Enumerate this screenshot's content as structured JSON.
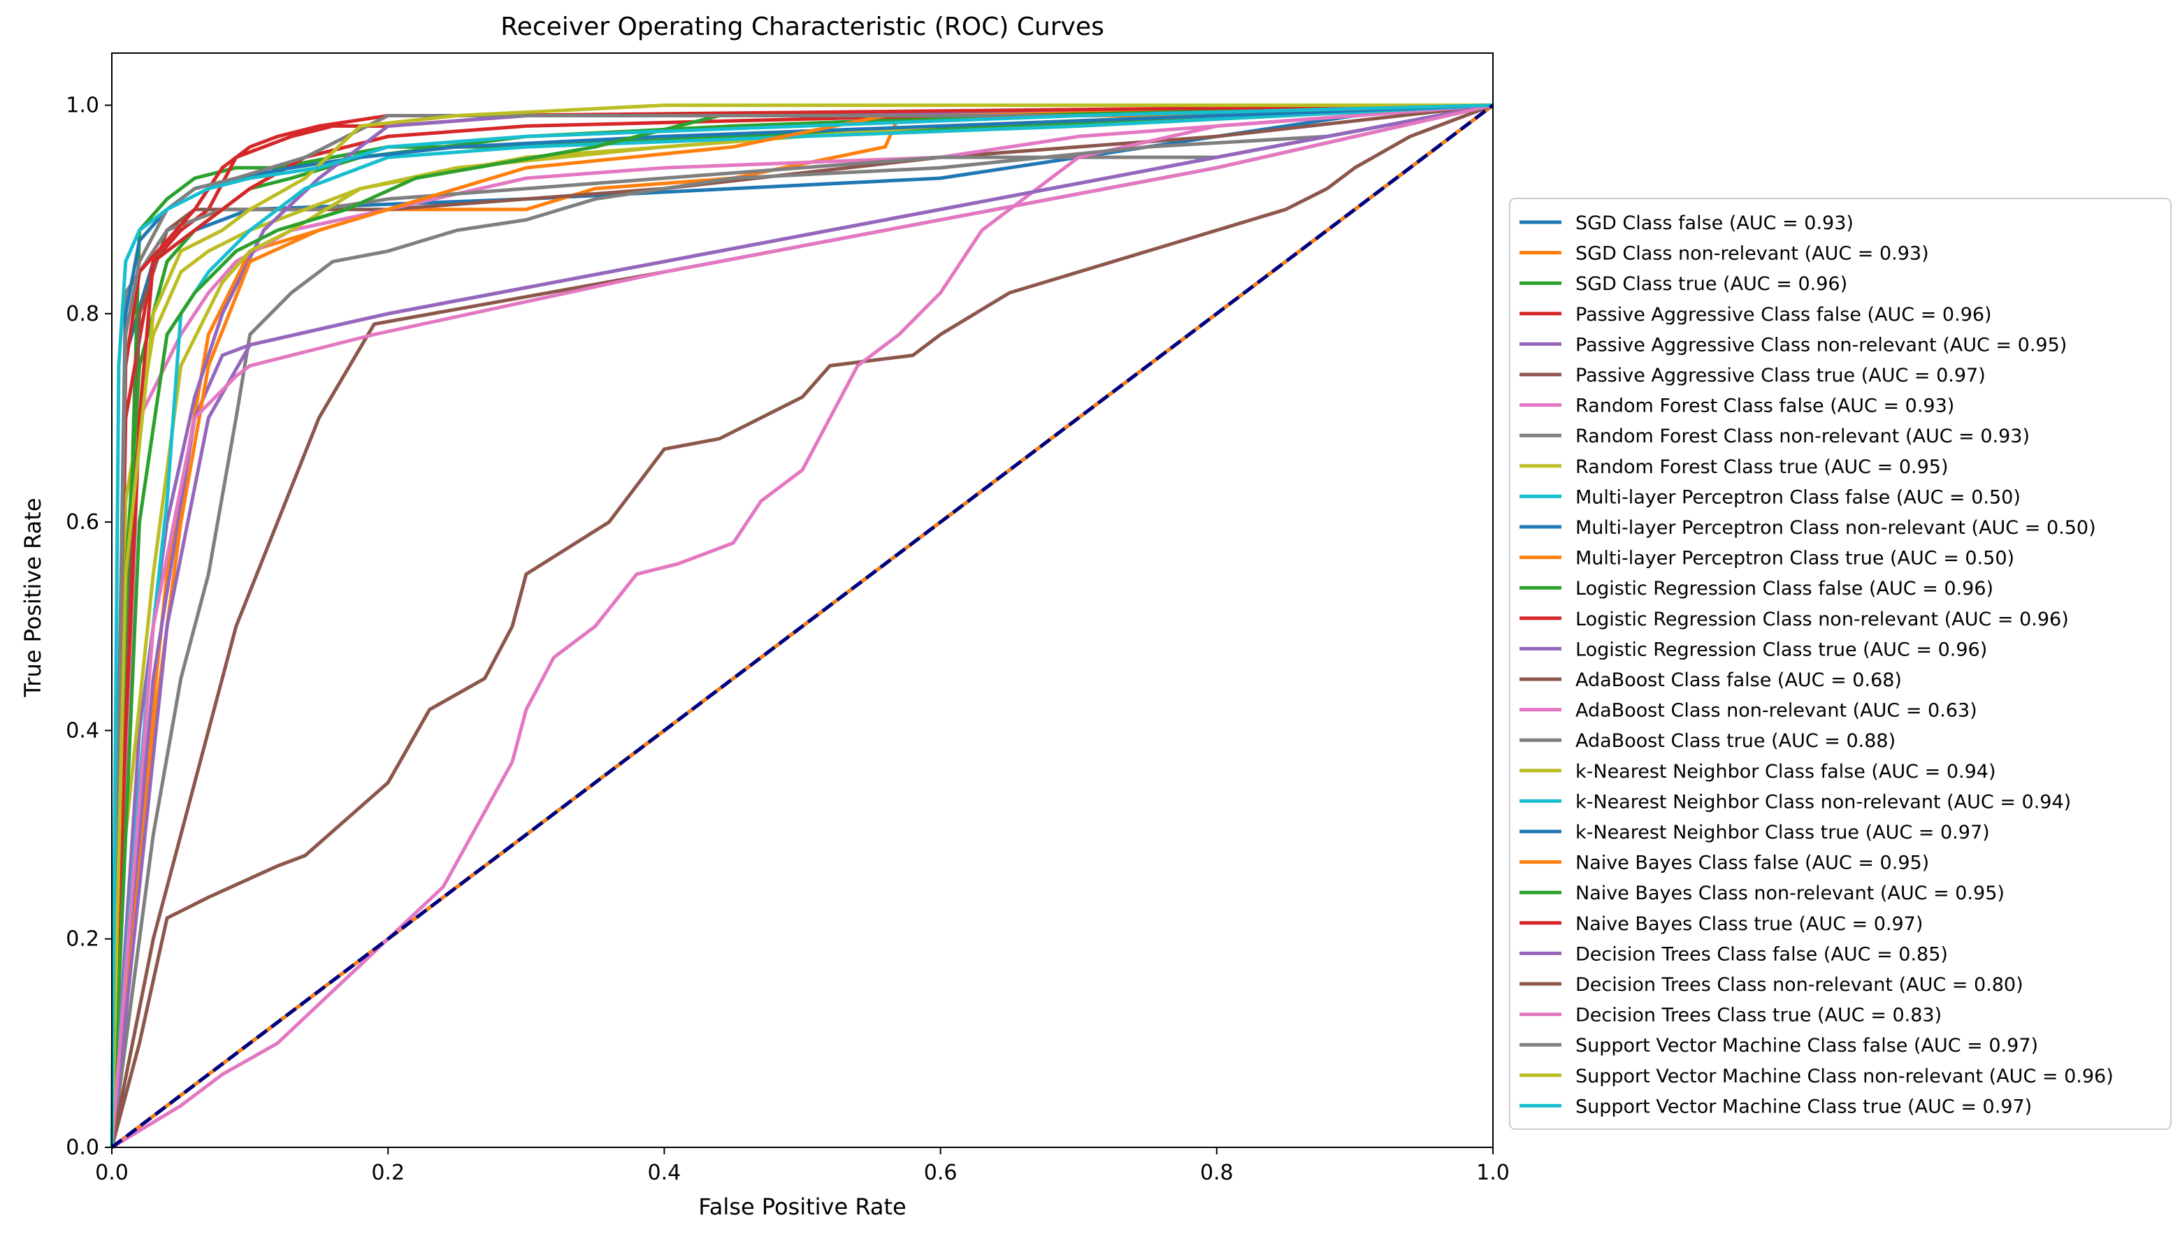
{
  "chart_data": {
    "type": "line",
    "title": "Receiver Operating Characteristic (ROC) Curves",
    "xlabel": "False Positive Rate",
    "ylabel": "True Positive Rate",
    "xlim": [
      0.0,
      1.0
    ],
    "ylim": [
      0.0,
      1.05
    ],
    "xticks": [
      "0.0",
      "0.2",
      "0.4",
      "0.6",
      "0.8",
      "1.0"
    ],
    "xtick_values": [
      0.0,
      0.2,
      0.4,
      0.6,
      0.8,
      1.0
    ],
    "yticks": [
      "0.0",
      "0.2",
      "0.4",
      "0.6",
      "0.8",
      "1.0"
    ],
    "ytick_values": [
      0.0,
      0.2,
      0.4,
      0.6,
      0.8,
      1.0
    ],
    "grid": false,
    "legend_position": "center-right-outside",
    "series": [
      {
        "name": "SGD Class false (AUC = 0.93)",
        "color": "#1f77b4",
        "x": [
          0,
          0.01,
          0.03,
          0.06,
          0.1,
          0.2,
          0.3,
          0.45,
          0.6,
          0.7,
          0.8,
          0.9,
          1.0
        ],
        "y": [
          0,
          0.76,
          0.85,
          0.88,
          0.9,
          0.905,
          0.91,
          0.92,
          0.93,
          0.95,
          0.97,
          0.99,
          1.0
        ]
      },
      {
        "name": "SGD Class non-relevant (AUC = 0.93)",
        "color": "#ff7f0e",
        "x": [
          0,
          0.02,
          0.04,
          0.07,
          0.1,
          0.15,
          0.2,
          0.3,
          0.35,
          0.45,
          0.56,
          0.57,
          0.8,
          1.0
        ],
        "y": [
          0,
          0.3,
          0.55,
          0.78,
          0.86,
          0.88,
          0.9,
          0.9,
          0.92,
          0.93,
          0.96,
          0.99,
          0.99,
          1.0
        ]
      },
      {
        "name": "SGD Class true (AUC = 0.96)",
        "color": "#2ca02c",
        "x": [
          0,
          0.02,
          0.04,
          0.06,
          0.09,
          0.12,
          0.16,
          0.2,
          0.3,
          0.45,
          0.65,
          1.0
        ],
        "y": [
          0,
          0.88,
          0.91,
          0.93,
          0.94,
          0.94,
          0.95,
          0.96,
          0.96,
          0.97,
          0.98,
          1.0
        ]
      },
      {
        "name": "Passive Aggressive Class false (AUC = 0.96)",
        "color": "#d62728",
        "x": [
          0,
          0.01,
          0.03,
          0.05,
          0.07,
          0.09,
          0.11,
          0.13,
          0.16,
          0.2,
          0.3,
          0.5,
          1.0
        ],
        "y": [
          0,
          0.7,
          0.85,
          0.88,
          0.9,
          0.95,
          0.96,
          0.97,
          0.98,
          0.98,
          0.99,
          0.99,
          1.0
        ]
      },
      {
        "name": "Passive Aggressive Class non-relevant (AUC = 0.95)",
        "color": "#9467bd",
        "x": [
          0,
          0.03,
          0.06,
          0.08,
          0.1,
          0.2,
          0.4,
          0.6,
          0.8,
          1.0
        ],
        "y": [
          0,
          0.45,
          0.7,
          0.76,
          0.77,
          0.8,
          0.85,
          0.9,
          0.95,
          1.0
        ]
      },
      {
        "name": "Passive Aggressive Class true (AUC = 0.97)",
        "color": "#8c564b",
        "x": [
          0,
          0.02,
          0.04,
          0.06,
          0.1,
          0.2,
          0.4,
          0.6,
          0.8,
          1.0
        ],
        "y": [
          0,
          0.8,
          0.88,
          0.9,
          0.9,
          0.9,
          0.92,
          0.95,
          0.97,
          1.0
        ]
      },
      {
        "name": "Random Forest Class false (AUC = 0.93)",
        "color": "#e377c2",
        "x": [
          0,
          0.02,
          0.05,
          0.07,
          0.09,
          0.13,
          0.2,
          0.3,
          0.4,
          0.6,
          0.7,
          1.0
        ],
        "y": [
          0,
          0.7,
          0.78,
          0.82,
          0.85,
          0.88,
          0.9,
          0.93,
          0.94,
          0.95,
          0.97,
          1.0
        ]
      },
      {
        "name": "Random Forest Class non-relevant (AUC = 0.93)",
        "color": "#7f7f7f",
        "x": [
          0,
          0.01,
          0.04,
          0.06,
          0.08,
          0.1,
          0.15,
          0.2,
          0.3,
          0.6,
          0.8,
          1.0
        ],
        "y": [
          0,
          0.82,
          0.88,
          0.89,
          0.9,
          0.9,
          0.9,
          0.91,
          0.92,
          0.95,
          0.95,
          1.0
        ]
      },
      {
        "name": "Random Forest Class true (AUC = 0.95)",
        "color": "#bcbd22",
        "x": [
          0,
          0.01,
          0.03,
          0.05,
          0.07,
          0.1,
          0.14,
          0.18,
          0.25,
          0.4,
          0.6,
          1.0
        ],
        "y": [
          0,
          0.62,
          0.78,
          0.84,
          0.86,
          0.88,
          0.9,
          0.92,
          0.94,
          0.96,
          0.98,
          1.0
        ]
      },
      {
        "name": "Multi-layer Perceptron Class false (AUC = 0.50)",
        "color": "#17becf",
        "x": [
          0,
          1.0
        ],
        "y": [
          0,
          1.0
        ]
      },
      {
        "name": "Multi-layer Perceptron Class non-relevant (AUC = 0.50)",
        "color": "#1f77b4",
        "x": [
          0,
          1.0
        ],
        "y": [
          0,
          1.0
        ]
      },
      {
        "name": "Multi-layer Perceptron Class true (AUC = 0.50)",
        "color": "#ff7f0e",
        "x": [
          0,
          1.0
        ],
        "y": [
          0,
          1.0
        ]
      },
      {
        "name": "Logistic Regression Class false (AUC = 0.96)",
        "color": "#2ca02c",
        "x": [
          0,
          0.01,
          0.02,
          0.04,
          0.06,
          0.08,
          0.1,
          0.13,
          0.18,
          0.3,
          0.45,
          0.65,
          1.0
        ],
        "y": [
          0,
          0.55,
          0.75,
          0.85,
          0.88,
          0.9,
          0.92,
          0.93,
          0.95,
          0.97,
          0.98,
          0.99,
          1.0
        ]
      },
      {
        "name": "Logistic Regression Class non-relevant (AUC = 0.96)",
        "color": "#d62728",
        "x": [
          0,
          0.01,
          0.02,
          0.03,
          0.05,
          0.08,
          0.1,
          0.14,
          0.2,
          0.3,
          0.6,
          1.0
        ],
        "y": [
          0,
          0.4,
          0.7,
          0.85,
          0.87,
          0.9,
          0.92,
          0.95,
          0.97,
          0.98,
          0.99,
          1.0
        ]
      },
      {
        "name": "Logistic Regression Class true (AUC = 0.96)",
        "color": "#9467bd",
        "x": [
          0,
          0.02,
          0.04,
          0.06,
          0.08,
          0.11,
          0.15,
          0.2,
          0.3,
          0.5,
          1.0
        ],
        "y": [
          0,
          0.4,
          0.6,
          0.72,
          0.8,
          0.88,
          0.93,
          0.98,
          0.99,
          0.99,
          1.0
        ]
      },
      {
        "name": "AdaBoost Class false (AUC = 0.68)",
        "color": "#8c564b",
        "x": [
          0,
          0.02,
          0.04,
          0.07,
          0.12,
          0.14,
          0.2,
          0.23,
          0.27,
          0.29,
          0.3,
          0.36,
          0.4,
          0.44,
          0.5,
          0.52,
          0.58,
          0.6,
          0.65,
          0.75,
          0.85,
          0.88,
          0.9,
          0.94,
          1.0
        ],
        "y": [
          0,
          0.1,
          0.22,
          0.24,
          0.27,
          0.28,
          0.35,
          0.42,
          0.45,
          0.5,
          0.55,
          0.6,
          0.67,
          0.68,
          0.72,
          0.75,
          0.76,
          0.78,
          0.82,
          0.86,
          0.9,
          0.92,
          0.94,
          0.97,
          1.0
        ]
      },
      {
        "name": "AdaBoost Class non-relevant (AUC = 0.63)",
        "color": "#e377c2",
        "x": [
          0,
          0.05,
          0.08,
          0.12,
          0.16,
          0.2,
          0.24,
          0.29,
          0.3,
          0.32,
          0.35,
          0.38,
          0.41,
          0.45,
          0.47,
          0.5,
          0.52,
          0.54,
          0.57,
          0.6,
          0.63,
          0.65,
          0.7,
          0.8,
          1.0
        ],
        "y": [
          0,
          0.04,
          0.07,
          0.1,
          0.15,
          0.2,
          0.25,
          0.37,
          0.42,
          0.47,
          0.5,
          0.55,
          0.56,
          0.58,
          0.62,
          0.65,
          0.7,
          0.75,
          0.78,
          0.82,
          0.88,
          0.9,
          0.95,
          0.98,
          1.0
        ]
      },
      {
        "name": "AdaBoost Class true (AUC = 0.88)",
        "color": "#7f7f7f",
        "x": [
          0,
          0.03,
          0.05,
          0.07,
          0.09,
          0.1,
          0.13,
          0.16,
          0.2,
          0.25,
          0.3,
          0.35,
          0.45,
          0.6,
          0.75,
          0.88,
          1.0
        ],
        "y": [
          0,
          0.3,
          0.45,
          0.55,
          0.7,
          0.78,
          0.82,
          0.85,
          0.86,
          0.88,
          0.89,
          0.91,
          0.93,
          0.94,
          0.96,
          0.97,
          1.0
        ]
      },
      {
        "name": "k-Nearest Neighbor Class false (AUC = 0.94)",
        "color": "#bcbd22",
        "x": [
          0,
          0.01,
          0.03,
          0.05,
          0.08,
          0.1,
          0.13,
          0.18,
          0.3,
          0.5,
          0.7,
          1.0
        ],
        "y": [
          0,
          0.3,
          0.55,
          0.75,
          0.83,
          0.86,
          0.88,
          0.92,
          0.95,
          0.97,
          0.98,
          1.0
        ]
      },
      {
        "name": "k-Nearest Neighbor Class non-relevant (AUC = 0.94)",
        "color": "#17becf",
        "x": [
          0,
          0.02,
          0.03,
          0.04,
          0.05,
          0.07,
          0.1,
          0.14,
          0.2,
          0.3,
          0.5,
          0.7,
          1.0
        ],
        "y": [
          0,
          0.35,
          0.5,
          0.62,
          0.8,
          0.84,
          0.88,
          0.92,
          0.95,
          0.96,
          0.97,
          0.98,
          1.0
        ]
      },
      {
        "name": "k-Nearest Neighbor Class true (AUC = 0.97)",
        "color": "#1f77b4",
        "x": [
          0,
          0.01,
          0.02,
          0.04,
          0.06,
          0.09,
          0.13,
          0.18,
          0.25,
          0.4,
          0.6,
          1.0
        ],
        "y": [
          0,
          0.8,
          0.87,
          0.9,
          0.92,
          0.93,
          0.94,
          0.95,
          0.96,
          0.97,
          0.98,
          1.0
        ]
      },
      {
        "name": "Naive Bayes Class false (AUC = 0.95)",
        "color": "#ff7f0e",
        "x": [
          0,
          0.03,
          0.05,
          0.07,
          0.1,
          0.15,
          0.2,
          0.3,
          0.45,
          0.56,
          0.6,
          1.0
        ],
        "y": [
          0,
          0.4,
          0.6,
          0.75,
          0.85,
          0.88,
          0.9,
          0.94,
          0.96,
          0.99,
          0.99,
          1.0
        ]
      },
      {
        "name": "Naive Bayes Class non-relevant (AUC = 0.95)",
        "color": "#2ca02c",
        "x": [
          0,
          0.02,
          0.04,
          0.06,
          0.09,
          0.12,
          0.17,
          0.22,
          0.35,
          0.44,
          0.65,
          1.0
        ],
        "y": [
          0,
          0.6,
          0.78,
          0.82,
          0.86,
          0.88,
          0.9,
          0.93,
          0.96,
          0.99,
          0.99,
          1.0
        ]
      },
      {
        "name": "Naive Bayes Class true (AUC = 0.97)",
        "color": "#d62728",
        "x": [
          0,
          0.01,
          0.02,
          0.04,
          0.06,
          0.08,
          0.1,
          0.12,
          0.15,
          0.2,
          0.27,
          1.0
        ],
        "y": [
          0,
          0.75,
          0.84,
          0.87,
          0.9,
          0.94,
          0.96,
          0.97,
          0.98,
          0.99,
          0.99,
          1.0
        ]
      },
      {
        "name": "Decision Trees Class false (AUC = 0.85)",
        "color": "#9467bd",
        "x": [
          0,
          0.04,
          0.07,
          0.1,
          0.2,
          0.4,
          0.6,
          0.8,
          1.0
        ],
        "y": [
          0,
          0.5,
          0.7,
          0.77,
          0.8,
          0.85,
          0.9,
          0.95,
          1.0
        ]
      },
      {
        "name": "Decision Trees Class non-relevant (AUC = 0.80)",
        "color": "#8c564b",
        "x": [
          0,
          0.03,
          0.09,
          0.15,
          0.19,
          0.4,
          0.6,
          0.8,
          1.0
        ],
        "y": [
          0,
          0.2,
          0.5,
          0.7,
          0.79,
          0.84,
          0.89,
          0.94,
          1.0
        ]
      },
      {
        "name": "Decision Trees Class true (AUC = 0.83)",
        "color": "#e377c2",
        "x": [
          0,
          0.03,
          0.06,
          0.09,
          0.1,
          0.19,
          0.4,
          0.6,
          0.8,
          1.0
        ],
        "y": [
          0,
          0.5,
          0.7,
          0.74,
          0.75,
          0.78,
          0.84,
          0.89,
          0.94,
          1.0
        ]
      },
      {
        "name": "Support Vector Machine Class false (AUC = 0.97)",
        "color": "#7f7f7f",
        "x": [
          0,
          0.01,
          0.02,
          0.04,
          0.06,
          0.09,
          0.14,
          0.2,
          0.3,
          0.5,
          0.7,
          1.0
        ],
        "y": [
          0,
          0.78,
          0.85,
          0.9,
          0.92,
          0.93,
          0.95,
          0.99,
          0.99,
          0.99,
          0.99,
          1.0
        ]
      },
      {
        "name": "Support Vector Machine Class non-relevant (AUC = 0.96)",
        "color": "#bcbd22",
        "x": [
          0,
          0.01,
          0.03,
          0.05,
          0.08,
          0.1,
          0.14,
          0.18,
          0.25,
          0.4,
          0.6,
          1.0
        ],
        "y": [
          0,
          0.55,
          0.8,
          0.86,
          0.88,
          0.9,
          0.93,
          0.98,
          0.99,
          1.0,
          1.0,
          1.0
        ]
      },
      {
        "name": "Support Vector Machine Class true (AUC = 0.97)",
        "color": "#17becf",
        "x": [
          0,
          0.005,
          0.01,
          0.02,
          0.04,
          0.07,
          0.1,
          0.15,
          0.2,
          0.3,
          0.5,
          0.7,
          1.0
        ],
        "y": [
          0,
          0.75,
          0.85,
          0.88,
          0.9,
          0.92,
          0.93,
          0.94,
          0.96,
          0.97,
          0.98,
          0.99,
          1.0
        ]
      }
    ],
    "reference_line": {
      "x": [
        0,
        1
      ],
      "y": [
        0,
        1
      ],
      "color": "#000080",
      "style": "dashed"
    }
  }
}
